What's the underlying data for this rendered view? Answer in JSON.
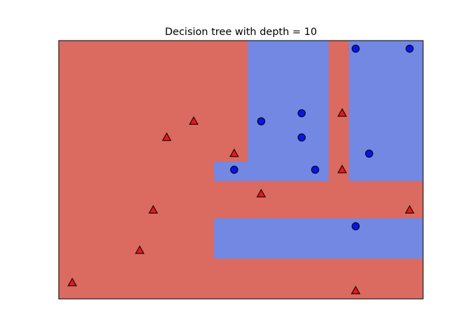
{
  "chart_data": {
    "type": "scatter",
    "title": "Decision tree with depth = 10",
    "xlabel": "",
    "ylabel": "",
    "xlim": [
      0,
      27
    ],
    "ylim": [
      0,
      16
    ],
    "axis_ticks": "none",
    "grid": false,
    "legend": "none",
    "background_class": "class 0 (triangles)",
    "decision_regions": [
      {
        "class": "class 1 (circles)",
        "x": [
          14.0,
          20.0
        ],
        "y": [
          7.3,
          16.0
        ]
      },
      {
        "class": "class 1 (circles)",
        "x": [
          11.5,
          14.0
        ],
        "y": [
          7.3,
          8.5
        ]
      },
      {
        "class": "class 1 (circles)",
        "x": [
          21.5,
          27.0
        ],
        "y": [
          7.3,
          16.0
        ]
      },
      {
        "class": "class 1 (circles)",
        "x": [
          11.5,
          27.0
        ],
        "y": [
          2.5,
          5.0
        ]
      }
    ],
    "series": [
      {
        "class": "class 0 (triangles)",
        "marker": "triangle",
        "color": "#e31a1c",
        "points": [
          [
            1,
            1
          ],
          [
            6,
            3
          ],
          [
            7,
            5.5
          ],
          [
            8,
            10
          ],
          [
            10,
            11
          ],
          [
            13,
            9
          ],
          [
            15,
            6.5
          ],
          [
            21,
            11.5
          ],
          [
            21,
            8
          ],
          [
            22,
            0.5
          ],
          [
            26,
            5.5
          ]
        ]
      },
      {
        "class": "class 1 (circles)",
        "marker": "circle",
        "color": "#0a14e6",
        "points": [
          [
            13,
            8
          ],
          [
            15,
            11
          ],
          [
            18,
            11.5
          ],
          [
            18,
            10
          ],
          [
            19,
            8
          ],
          [
            22,
            15.5
          ],
          [
            26,
            15.5
          ],
          [
            23,
            9
          ],
          [
            22,
            4.5
          ]
        ]
      }
    ]
  },
  "colors": {
    "region_class_0": "#db6a61",
    "region_class_1": "#7288e3",
    "marker_edge": "#000000",
    "frame": "#000000"
  }
}
